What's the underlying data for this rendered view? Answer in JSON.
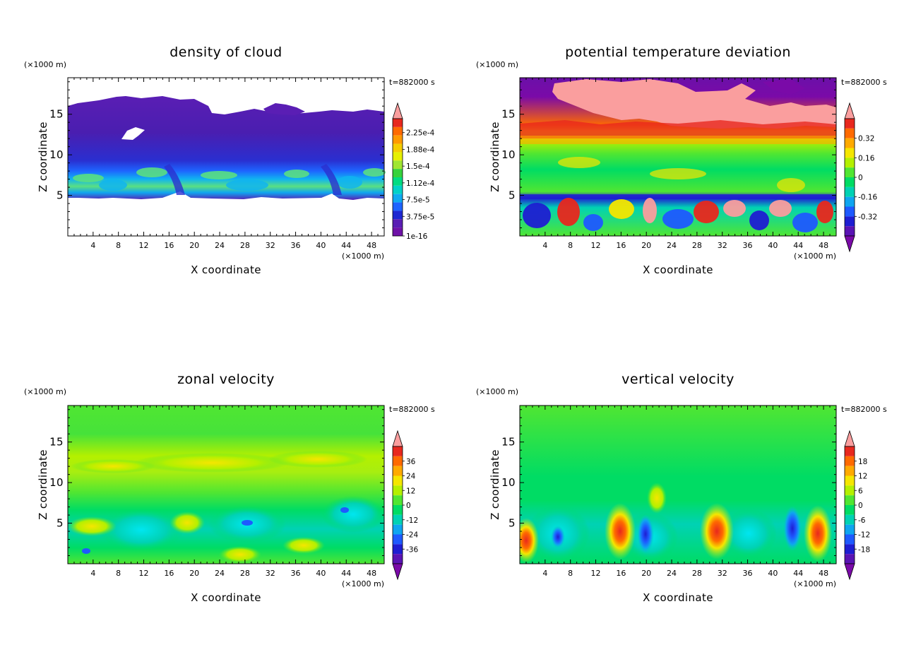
{
  "chart_data": [
    {
      "type": "heatmap",
      "title": "density of cloud",
      "xlabel": "X coordinate",
      "ylabel": "Z coordinate",
      "x_unit": "(×1000 m)",
      "z_unit": "(×1000 m)",
      "time_label": "t=882000 s",
      "xlim": [
        0,
        50
      ],
      "ylim": [
        0,
        19.5
      ],
      "x_ticks": [
        "4",
        "8",
        "12",
        "16",
        "20",
        "24",
        "28",
        "32",
        "36",
        "40",
        "44",
        "48"
      ],
      "y_ticks": [
        "5",
        "10",
        "15"
      ],
      "colorbar": {
        "labels": [
          "2.25e-4",
          "1.88e-4",
          "1.5e-4",
          "1.12e-4",
          "7.5e-5",
          "3.75e-5",
          "1e-16"
        ],
        "colors": [
          "#fa9e9e",
          "#e8281e",
          "#ff6a00",
          "#ff9a00",
          "#f5cd00",
          "#e6f000",
          "#a0e632",
          "#37d23c",
          "#00dc82",
          "#00d2c8",
          "#0faaf0",
          "#1e64ff",
          "#1e28d2",
          "#5a1eb4",
          "#6f12a8"
        ],
        "bottom_arrow": false
      },
      "description": "Cloud layer between about z=5 and z=15.5 km; highest densities (cyan/green) in a band near z=6-8 km, dark purple low density aloft."
    },
    {
      "type": "heatmap",
      "title": "potential temperature deviation",
      "xlabel": "X coordinate",
      "ylabel": "Z coordinate",
      "x_unit": "(×1000 m)",
      "z_unit": "(×1000 m)",
      "time_label": "t=882000 s",
      "xlim": [
        0,
        50
      ],
      "ylim": [
        0,
        19.5
      ],
      "x_ticks": [
        "4",
        "8",
        "12",
        "16",
        "20",
        "24",
        "28",
        "32",
        "36",
        "40",
        "44",
        "48"
      ],
      "y_ticks": [
        "5",
        "10",
        "15"
      ],
      "colorbar": {
        "labels": [
          "0.32",
          "0.16",
          "0",
          "-0.16",
          "-0.32"
        ],
        "colors": [
          "#fa9e9e",
          "#e8281e",
          "#ff6a00",
          "#ffaa00",
          "#f5e600",
          "#b4f000",
          "#50e632",
          "#00dc64",
          "#00d2b4",
          "#0fa5f0",
          "#1e5aff",
          "#1e1ed2",
          "#5a14b4",
          "#7a0aa8"
        ],
        "bottom_arrow": true
      },
      "description": "Strong positive anomaly (pink/red) above 13 km, near-neutral greens 6-13 km, mixed positive and negative cells below 5 km."
    },
    {
      "type": "heatmap",
      "title": "zonal velocity",
      "xlabel": "X coordinate",
      "ylabel": "Z coordinate",
      "x_unit": "(×1000 m)",
      "z_unit": "(×1000 m)",
      "time_label": "t=882000 s",
      "xlim": [
        0,
        50
      ],
      "ylim": [
        0,
        19.5
      ],
      "x_ticks": [
        "4",
        "8",
        "12",
        "16",
        "20",
        "24",
        "28",
        "32",
        "36",
        "40",
        "44",
        "48"
      ],
      "y_ticks": [
        "5",
        "10",
        "15"
      ],
      "colorbar": {
        "labels": [
          "36",
          "24",
          "12",
          "0",
          "-12",
          "-24",
          "-36"
        ],
        "colors": [
          "#fa9e9e",
          "#e8281e",
          "#ff6a00",
          "#ffaa00",
          "#f5e600",
          "#b4f000",
          "#50e632",
          "#00dc64",
          "#00d2b4",
          "#0fa5f0",
          "#1e5aff",
          "#1e1ed2",
          "#5a14b4",
          "#7a0aa8"
        ],
        "bottom_arrow": true
      },
      "description": "Mostly weak flow (green) with a positive yellow-green band near 12-14 km and negative cyan patches below 8 km."
    },
    {
      "type": "heatmap",
      "title": "vertical velocity",
      "xlabel": "X coordinate",
      "ylabel": "Z coordinate",
      "x_unit": "(×1000 m)",
      "z_unit": "(×1000 m)",
      "time_label": "t=882000 s",
      "xlim": [
        0,
        50
      ],
      "ylim": [
        0,
        19.5
      ],
      "x_ticks": [
        "4",
        "8",
        "12",
        "16",
        "20",
        "24",
        "28",
        "32",
        "36",
        "40",
        "44",
        "48"
      ],
      "y_ticks": [
        "5",
        "10",
        "15"
      ],
      "colorbar": {
        "labels": [
          "18",
          "12",
          "6",
          "0",
          "-6",
          "-12",
          "-18"
        ],
        "colors": [
          "#fa9e9e",
          "#e8281e",
          "#ff6a00",
          "#ffaa00",
          "#f5e600",
          "#b4f000",
          "#50e632",
          "#00dc64",
          "#00d2b4",
          "#0fa5f0",
          "#1e5aff",
          "#1e1ed2",
          "#5a14b4",
          "#7a0aa8"
        ],
        "bottom_arrow": true
      },
      "description": "Near-zero (green) aloft; alternating updraft (orange/red) and downdraft (blue) cells below 7 km."
    }
  ]
}
